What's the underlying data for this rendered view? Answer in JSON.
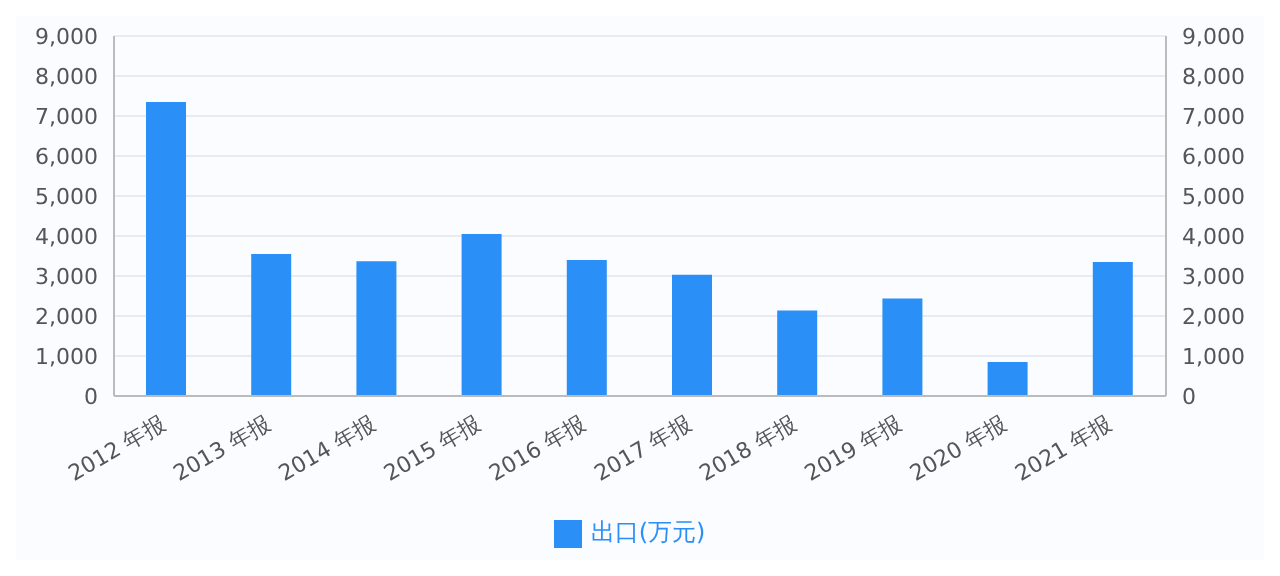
{
  "chart_data": {
    "type": "bar",
    "categories": [
      "2012 年报",
      "2013 年报",
      "2014 年报",
      "2015 年报",
      "2016 年报",
      "2017 年报",
      "2018 年报",
      "2019 年报",
      "2020 年报",
      "2021 年报"
    ],
    "series": [
      {
        "name": "出口(万元)",
        "color": "#2a8ff7",
        "values": [
          7350,
          3550,
          3370,
          4050,
          3400,
          3030,
          2140,
          2440,
          850,
          3350
        ]
      }
    ],
    "ylim": [
      0,
      9000
    ],
    "yticks": [
      {
        "value": 0,
        "label": "0"
      },
      {
        "value": 1000,
        "label": "1,000"
      },
      {
        "value": 2000,
        "label": "2,000"
      },
      {
        "value": 3000,
        "label": "3,000"
      },
      {
        "value": 4000,
        "label": "4,000"
      },
      {
        "value": 5000,
        "label": "5,000"
      },
      {
        "value": 6000,
        "label": "6,000"
      },
      {
        "value": 7000,
        "label": "7,000"
      },
      {
        "value": 8000,
        "label": "8,000"
      },
      {
        "value": 9000,
        "label": "9,000"
      }
    ],
    "y2lim": [
      0,
      9000
    ],
    "y2ticks": [
      {
        "value": 0,
        "label": "0"
      },
      {
        "value": 1000,
        "label": "1,000"
      },
      {
        "value": 2000,
        "label": "2,000"
      },
      {
        "value": 3000,
        "label": "3,000"
      },
      {
        "value": 4000,
        "label": "4,000"
      },
      {
        "value": 5000,
        "label": "5,000"
      },
      {
        "value": 6000,
        "label": "6,000"
      },
      {
        "value": 7000,
        "label": "7,000"
      },
      {
        "value": 8000,
        "label": "8,000"
      },
      {
        "value": 9000,
        "label": "9,000"
      }
    ],
    "grid": "y",
    "legend": "bottom"
  }
}
